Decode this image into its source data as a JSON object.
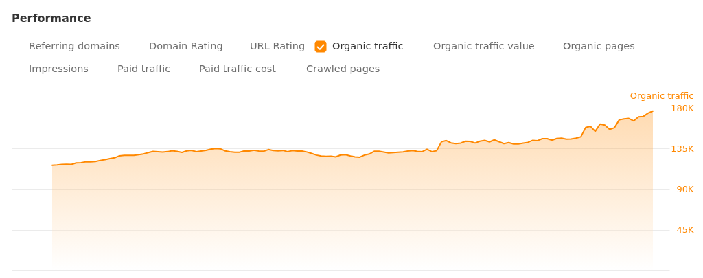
{
  "chart_data": {
    "type": "area",
    "title": "Performance",
    "ylabel": "Organic traffic",
    "annotations": [
      "Referring domains",
      "Domain Rating",
      "URL Rating",
      "Organic traffic value",
      "Organic pages",
      "Impressions",
      "Paid traffic",
      "Paid traffic cost",
      "Crawled pages"
    ],
    "categories": [
      null,
      null,
      null,
      null,
      null,
      null,
      null,
      null,
      null,
      null,
      null,
      null,
      null,
      null,
      null,
      null,
      null,
      null,
      null,
      null,
      null,
      null,
      null,
      null,
      null,
      null,
      null,
      null,
      null,
      null,
      null,
      null,
      null,
      null,
      null,
      null,
      null,
      null,
      null,
      null,
      null,
      null,
      null,
      null,
      null,
      null,
      null,
      null,
      null,
      null,
      null,
      null,
      null,
      null,
      null,
      null,
      null,
      null,
      null,
      null,
      null,
      null,
      null,
      null,
      null,
      null,
      null,
      null,
      null,
      null,
      null,
      null,
      null,
      null,
      null,
      null,
      null,
      null,
      null,
      null,
      null,
      null,
      null,
      null,
      null,
      null,
      null,
      null,
      null,
      null,
      null,
      null,
      null,
      null,
      null,
      null,
      null,
      null,
      null,
      null,
      null,
      null,
      null,
      null,
      null,
      null,
      null,
      null,
      null,
      null,
      null,
      null,
      null,
      null,
      null,
      null,
      null,
      null,
      null,
      null,
      null,
      null,
      null,
      null,
      null,
      null
    ],
    "series": [
      {
        "name": "Organic traffic",
        "color": "#ff8800",
        "values": [
          116400,
          116800,
          117400,
          117500,
          117400,
          119000,
          119200,
          120300,
          120200,
          120500,
          121800,
          122700,
          123800,
          124700,
          126900,
          127400,
          127400,
          127400,
          128200,
          129000,
          130400,
          131700,
          131400,
          131100,
          131500,
          132600,
          131700,
          130600,
          132300,
          132900,
          131400,
          132100,
          132900,
          134300,
          135000,
          134700,
          132300,
          131400,
          130800,
          130900,
          132400,
          132100,
          133000,
          132100,
          132000,
          133800,
          132700,
          132400,
          132800,
          131500,
          132700,
          132200,
          132200,
          131100,
          129500,
          127700,
          126600,
          126200,
          126500,
          125700,
          127800,
          128100,
          126800,
          125700,
          125400,
          127700,
          128900,
          131900,
          131900,
          131000,
          130000,
          130400,
          130900,
          131200,
          132100,
          132700,
          131700,
          131400,
          134200,
          131500,
          132600,
          142300,
          143700,
          141100,
          140400,
          140900,
          143000,
          142800,
          141000,
          143000,
          143900,
          142200,
          144500,
          142400,
          140300,
          141500,
          140000,
          140000,
          140800,
          141700,
          144000,
          143600,
          145800,
          145800,
          144100,
          146000,
          146400,
          145200,
          145400,
          146400,
          147800,
          158100,
          159500,
          153900,
          162000,
          160900,
          156100,
          157900,
          166600,
          167700,
          168200,
          165400,
          170000,
          170400,
          174000,
          176400
        ]
      }
    ],
    "ylim": [
      0,
      180000
    ],
    "yticks": [
      {
        "value": 0,
        "label": null
      },
      {
        "value": 45000,
        "label": "45K"
      },
      {
        "value": 90000,
        "label": "90K"
      },
      {
        "value": 135000,
        "label": "135K"
      },
      {
        "value": 180000,
        "label": "180K"
      }
    ],
    "grid": "y",
    "legend": "top left",
    "tick_labels": "y"
  }
}
